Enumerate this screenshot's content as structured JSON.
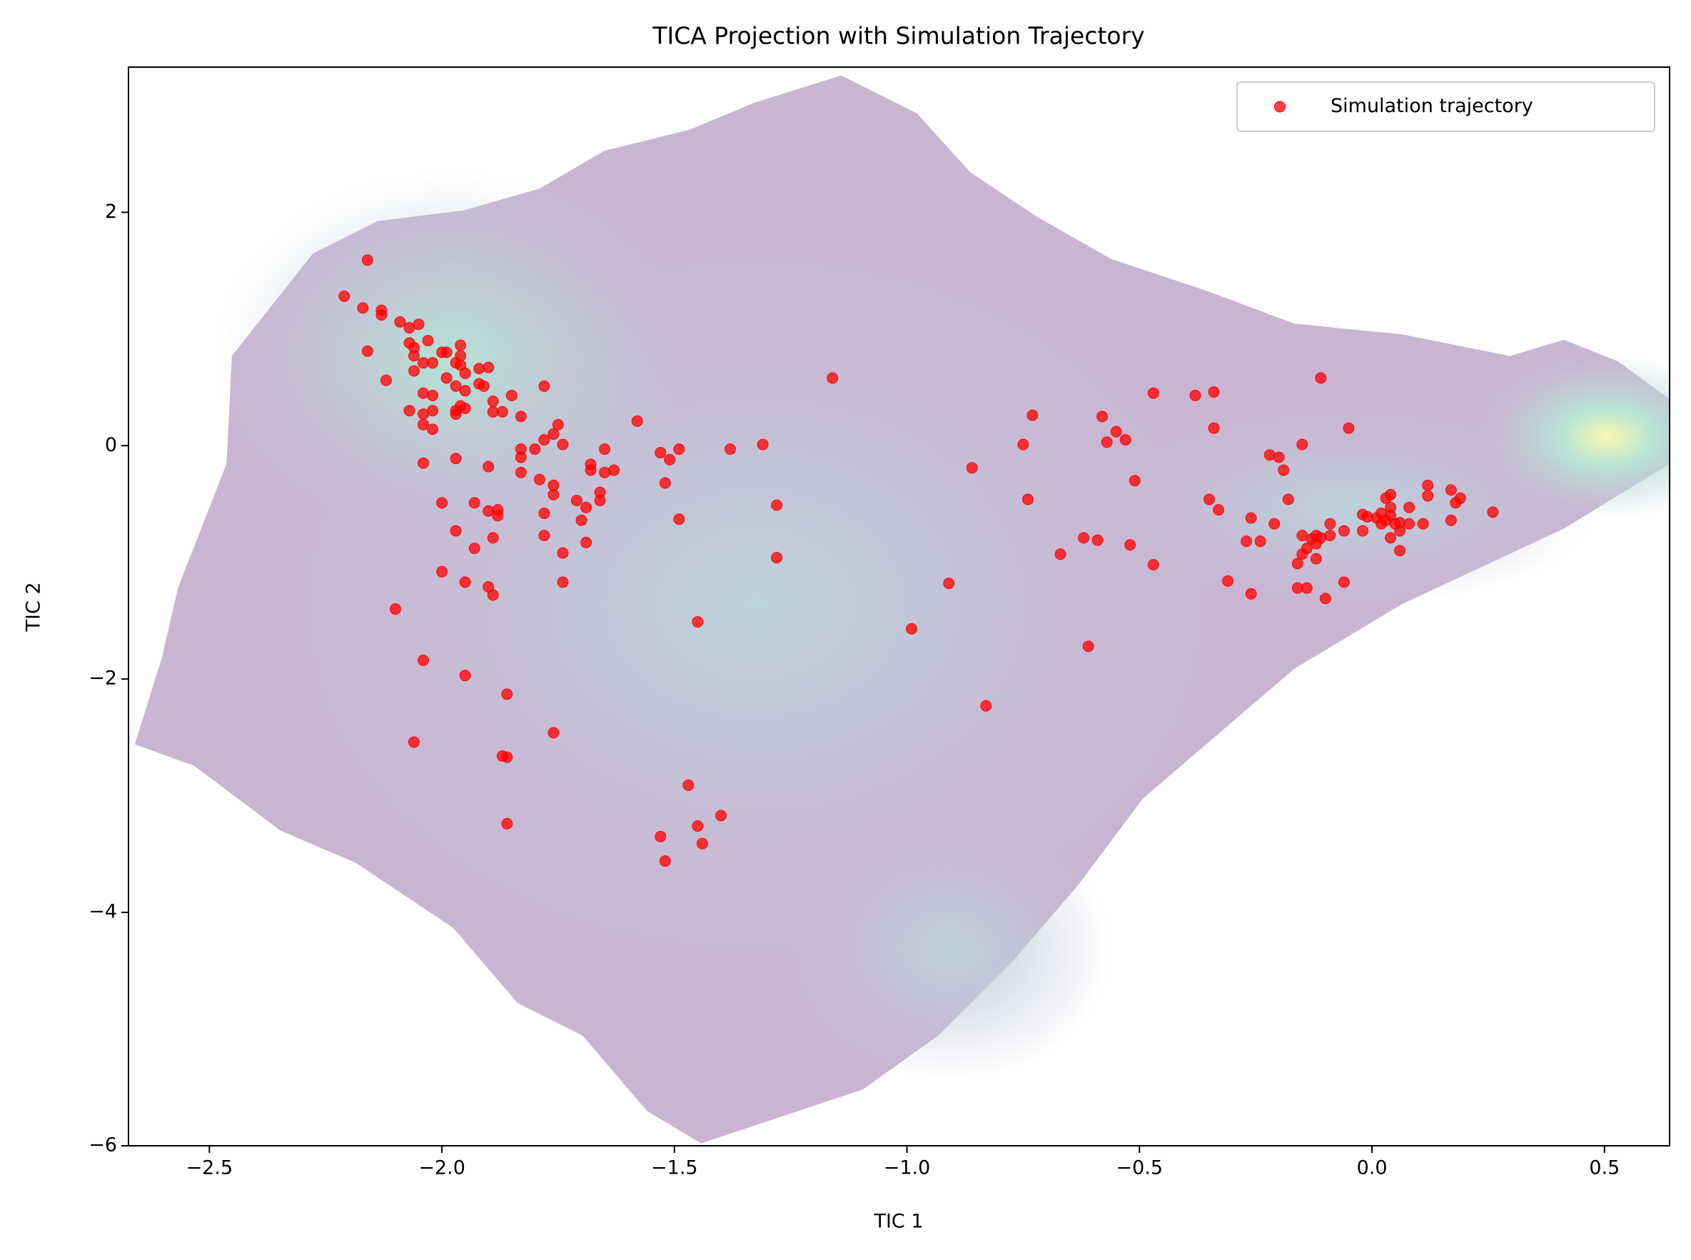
{
  "chart_data": {
    "type": "scatter",
    "title": "TICA Projection with Simulation Trajectory",
    "xlabel": "TIC 1",
    "ylabel": "TIC 2",
    "xlim": [
      -2.674,
      0.64
    ],
    "ylim": [
      -6,
      3.244
    ],
    "xticks": [
      {
        "value": -2.5,
        "label": "−2.5"
      },
      {
        "value": -2.0,
        "label": "−2.0"
      },
      {
        "value": -1.5,
        "label": "−1.5"
      },
      {
        "value": -1.0,
        "label": "−1.0"
      },
      {
        "value": -0.5,
        "label": "−0.5"
      },
      {
        "value": 0,
        "label": "0.0"
      },
      {
        "value": 0.5,
        "label": "0.5"
      }
    ],
    "yticks": [
      {
        "value": -6,
        "label": "−6"
      },
      {
        "value": -4,
        "label": "−4"
      },
      {
        "value": -2,
        "label": "−2"
      },
      0,
      2
    ],
    "legend": "upper right",
    "series": [
      {
        "name": "Simulation trajectory",
        "color": "#ff0000",
        "x": [
          -2.16,
          -2.21,
          -2.17,
          -2.13,
          -2.13,
          -2.16,
          -2.09,
          -2.07,
          -2.05,
          -2.07,
          -2.06,
          -2.03,
          -2.06,
          -2.04,
          -2.06,
          -2.12,
          -2.02,
          -2.0,
          -1.99,
          -1.96,
          -1.96,
          -1.97,
          -1.96,
          -1.99,
          -1.97,
          -1.95,
          -1.92,
          -1.9,
          -1.92,
          -1.91,
          -1.95,
          -2.04,
          -2.02,
          -2.07,
          -2.04,
          -2.02,
          -2.04,
          -2.02,
          -1.97,
          -1.96,
          -1.95,
          -1.97,
          -1.89,
          -1.89,
          -1.87,
          -1.85,
          -1.83,
          -1.78,
          -2.04,
          -1.97,
          -1.9,
          -1.83,
          -1.83,
          -1.8,
          -1.83,
          -1.79,
          -1.78,
          -1.76,
          -1.75,
          -1.74,
          -1.76,
          -1.76,
          -1.78,
          -1.78,
          -1.74,
          -1.74,
          -1.71,
          -1.69,
          -1.7,
          -1.69,
          -1.68,
          -1.68,
          -1.66,
          -1.66,
          -1.65,
          -1.65,
          -1.63,
          -1.58,
          -1.53,
          -1.51,
          -1.49,
          -1.52,
          -1.49,
          -1.38,
          -1.31,
          -1.28,
          -1.28,
          -1.45,
          -1.16,
          -2.0,
          -1.93,
          -1.97,
          -1.93,
          -1.9,
          -1.88,
          -1.88,
          -1.89,
          -2.0,
          -1.95,
          -1.9,
          -1.89,
          -2.1,
          -2.04,
          -1.95,
          -1.86,
          -2.06,
          -1.76,
          -1.87,
          -1.86,
          -1.86,
          -1.47,
          -1.4,
          -1.45,
          -1.53,
          -1.44,
          -1.52,
          -0.99,
          -0.91,
          -0.83,
          -0.86,
          -0.75,
          -0.73,
          -0.74,
          -0.67,
          -0.62,
          -0.59,
          -0.61,
          -0.58,
          -0.57,
          -0.55,
          -0.53,
          -0.51,
          -0.52,
          -0.47,
          -0.47,
          -0.38,
          -0.34,
          -0.34,
          -0.35,
          -0.33,
          -0.31,
          -0.27,
          -0.26,
          -0.26,
          -0.24,
          -0.22,
          -0.2,
          -0.21,
          -0.19,
          -0.18,
          -0.15,
          -0.16,
          -0.16,
          -0.14,
          -0.15,
          -0.14,
          -0.15,
          -0.13,
          -0.12,
          -0.12,
          -0.12,
          -0.11,
          -0.1,
          -0.11,
          -0.09,
          -0.09,
          -0.06,
          -0.06,
          -0.05,
          -0.02,
          -0.02,
          -0.01,
          0.01,
          0.02,
          0.02,
          0.03,
          0.04,
          0.03,
          0.04,
          0.04,
          0.04,
          0.05,
          0.06,
          0.06,
          0.06,
          0.08,
          0.08,
          0.11,
          0.12,
          0.12,
          0.17,
          0.17,
          0.18,
          0.19,
          0.26
        ],
        "y": [
          1.59,
          1.28,
          1.18,
          1.16,
          1.12,
          0.81,
          1.06,
          1.01,
          1.04,
          0.88,
          0.84,
          0.9,
          0.77,
          0.71,
          0.64,
          0.56,
          0.71,
          0.8,
          0.8,
          0.86,
          0.77,
          0.71,
          0.69,
          0.58,
          0.51,
          0.62,
          0.66,
          0.67,
          0.53,
          0.51,
          0.47,
          0.45,
          0.43,
          0.3,
          0.27,
          0.3,
          0.18,
          0.14,
          0.3,
          0.34,
          0.32,
          0.27,
          0.38,
          0.29,
          0.29,
          0.43,
          0.25,
          0.51,
          -0.15,
          -0.11,
          -0.18,
          -0.03,
          -0.1,
          -0.03,
          -0.23,
          -0.29,
          0.05,
          0.1,
          0.18,
          0.01,
          -0.34,
          -0.42,
          -0.58,
          -0.77,
          -0.92,
          -1.17,
          -0.47,
          -0.53,
          -0.64,
          -0.83,
          -0.16,
          -0.21,
          -0.4,
          -0.47,
          -0.23,
          -0.03,
          -0.21,
          0.21,
          -0.06,
          -0.12,
          -0.03,
          -0.32,
          -0.63,
          -0.03,
          0.01,
          -0.51,
          -0.96,
          -1.51,
          0.58,
          -0.49,
          -0.49,
          -0.73,
          -0.88,
          -0.56,
          -0.55,
          -0.6,
          -0.79,
          -1.08,
          -1.17,
          -1.21,
          -1.28,
          -1.4,
          -1.84,
          -1.97,
          -2.13,
          -2.54,
          -2.46,
          -2.66,
          -2.67,
          -3.24,
          -2.91,
          -3.17,
          -3.26,
          -3.35,
          -3.41,
          -3.56,
          -1.57,
          -1.18,
          -2.23,
          -0.19,
          0.01,
          0.26,
          -0.46,
          -0.93,
          -0.79,
          -0.81,
          -1.72,
          0.25,
          0.03,
          0.12,
          0.05,
          -0.3,
          -0.85,
          0.45,
          -1.02,
          0.43,
          0.46,
          0.15,
          -0.46,
          -0.55,
          -1.16,
          -0.82,
          -0.62,
          -1.27,
          -0.82,
          -0.08,
          -0.1,
          -0.67,
          -0.21,
          -0.46,
          0.01,
          -1.01,
          -1.22,
          -1.22,
          -0.77,
          -0.88,
          -0.93,
          -0.8,
          -0.77,
          -0.97,
          -0.84,
          -0.79,
          -1.31,
          0.58,
          -0.67,
          -0.77,
          -0.73,
          -1.17,
          0.15,
          -0.59,
          -0.73,
          -0.61,
          -0.62,
          -0.67,
          -0.58,
          -0.45,
          -0.53,
          -0.64,
          -0.42,
          -0.6,
          -0.79,
          -0.67,
          -0.73,
          -0.66,
          -0.9,
          -0.67,
          -0.53,
          -0.67,
          -0.43,
          -0.34,
          -0.38,
          -0.64,
          -0.49,
          -0.45,
          -0.57
        ]
      }
    ]
  }
}
